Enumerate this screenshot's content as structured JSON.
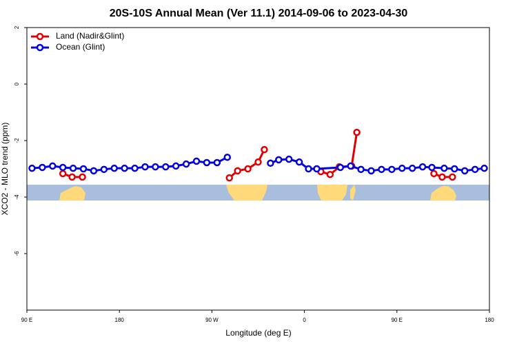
{
  "chart_data": {
    "type": "line",
    "title": "20S-10S Annual Mean (Ver 11.1)   2014-09-06 to 2023-04-30",
    "x_label": "Longitude (deg E)",
    "y_label": "XCO2 - MLO trend (ppm)",
    "xlim": [
      90,
      540
    ],
    "xticks": [
      {
        "value": 90,
        "label": "90 E"
      },
      180,
      {
        "value": 270,
        "label": "90 W"
      },
      {
        "value": 360,
        "label": "0"
      },
      {
        "value": 450,
        "label": "90 E"
      },
      {
        "value": 540,
        "label": "180"
      }
    ],
    "ylim": [
      -8,
      2
    ],
    "yticks": [
      -6,
      -4,
      -2,
      0,
      2
    ],
    "legend": "upper left",
    "series": [
      {
        "name": "Land (Nadir&Glint)",
        "color": "#e00000",
        "x": [
          125,
          134,
          144,
          null,
          287,
          295,
          305,
          315,
          321,
          null,
          376,
          385,
          394,
          406,
          411,
          null,
          486,
          494,
          504
        ],
        "values": [
          -3.17,
          -3.29,
          -3.29,
          null,
          -3.32,
          -3.07,
          -3.0,
          -2.76,
          -2.32,
          null,
          -3.1,
          -3.2,
          -2.93,
          -2.9,
          -1.71,
          null,
          -3.17,
          -3.29,
          -3.29
        ]
      },
      {
        "name": "Ocean (Glint)",
        "color": "#0000e0",
        "x": [
          95,
          105,
          115,
          125,
          135,
          145,
          155,
          165,
          175,
          185,
          195,
          205,
          215,
          225,
          235,
          245,
          255,
          265,
          275,
          285,
          null,
          327,
          335,
          345,
          355,
          364,
          372,
          395,
          405,
          415,
          425,
          435,
          445,
          455,
          465,
          475,
          484,
          496,
          506,
          516,
          526,
          535
        ],
        "values": [
          -2.98,
          -2.95,
          -2.9,
          -2.95,
          -2.98,
          -3.0,
          -3.07,
          -3.02,
          -2.98,
          -2.98,
          -2.98,
          -2.93,
          -2.93,
          -2.93,
          -2.9,
          -2.83,
          -2.73,
          -2.78,
          -2.78,
          -2.59,
          null,
          -2.8,
          -2.68,
          -2.66,
          -2.76,
          -3.0,
          -3.0,
          -2.95,
          -2.9,
          -3.02,
          -3.07,
          -3.02,
          -3.02,
          -2.98,
          -2.98,
          -2.93,
          -2.95,
          -2.98,
          -3.0,
          -3.07,
          -3.02,
          -2.98
        ]
      }
    ]
  }
}
